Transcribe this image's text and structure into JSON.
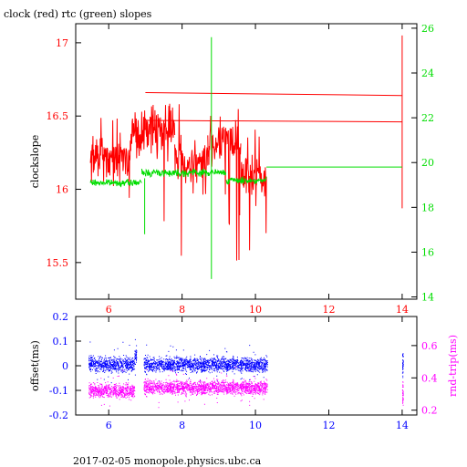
{
  "title": "clock (red) rtc (green) slopes",
  "footer": "2017-02-05  monopole.physics.ubc.ca",
  "colors": {
    "clock": "#ff0000",
    "rtc": "#00dd00",
    "offset": "#0000ff",
    "rndtrip": "#ff00ff",
    "frame": "#000000"
  },
  "chart_data": [
    {
      "type": "line",
      "title": "clock (red) rtc (green) slopes",
      "xlabel": "",
      "ylabel": "clockslope",
      "ylabel_right": "",
      "xlim": [
        5.1,
        14.4
      ],
      "ylim": [
        15.25,
        17.13
      ],
      "ylim_right": [
        13.9,
        26.2
      ],
      "xticks": [
        "6",
        "8",
        "10",
        "12",
        "14"
      ],
      "yticks": [
        "15.5",
        "16",
        "16.5",
        "17"
      ],
      "yticks_right": [
        "14",
        "16",
        "18",
        "20",
        "22",
        "24",
        "26"
      ],
      "clock_segments": [
        {
          "x0": 5.5,
          "x1": 6.6,
          "mean": 16.22,
          "spread": 0.12,
          "spike_lo": 15.55,
          "spike_hi": 16.6
        },
        {
          "x0": 6.6,
          "x1": 7.0,
          "mean": 16.38,
          "spread": 0.12,
          "spike_lo": 15.33,
          "spike_hi": 16.5
        },
        {
          "x0": 7.0,
          "x1": 7.8,
          "mean": 16.42,
          "spread": 0.14,
          "spike_lo": 15.7,
          "spike_hi": 16.73
        },
        {
          "x0": 7.8,
          "x1": 8.7,
          "mean": 16.18,
          "spread": 0.14,
          "spike_lo": 15.5,
          "spike_hi": 16.6
        },
        {
          "x0": 8.7,
          "x1": 9.6,
          "mean": 16.32,
          "spread": 0.15,
          "spike_lo": 15.4,
          "spike_hi": 16.65
        },
        {
          "x0": 9.6,
          "x1": 10.3,
          "mean": 16.08,
          "spread": 0.14,
          "spike_lo": 15.35,
          "spike_hi": 16.5
        }
      ],
      "clock_lines": [
        {
          "x": [
            7.0,
            14.0
          ],
          "y": [
            16.66,
            16.64
          ]
        },
        {
          "x": [
            7.0,
            14.0
          ],
          "y": [
            16.47,
            16.46
          ]
        },
        {
          "x": [
            14.0,
            14.0
          ],
          "y": [
            15.87,
            17.05
          ]
        }
      ],
      "rtc_segments": [
        {
          "x0": 5.5,
          "x1": 6.9,
          "mean": 19.1,
          "spread": 0.12
        },
        {
          "x0": 6.9,
          "x1": 9.2,
          "mean": 19.55,
          "spread": 0.15
        },
        {
          "x0": 9.2,
          "x1": 10.3,
          "mean": 19.2,
          "spread": 0.12
        }
      ],
      "rtc_lines": [
        {
          "x": [
            10.3,
            14.0
          ],
          "y": [
            19.8,
            19.8
          ]
        },
        {
          "x": [
            6.98,
            6.98
          ],
          "y": [
            16.8,
            19.3
          ]
        },
        {
          "x": [
            8.8,
            8.8
          ],
          "y": [
            14.8,
            25.6
          ]
        }
      ]
    },
    {
      "type": "scatter",
      "xlabel": "",
      "ylabel": "offset(ms)",
      "ylabel_right": "rnd-trip(ms)",
      "xlim": [
        5.1,
        14.4
      ],
      "ylim": [
        -0.2,
        0.2
      ],
      "ylim_right": [
        0.17,
        0.78
      ],
      "xticks": [
        "6",
        "8",
        "10",
        "12",
        "14"
      ],
      "yticks": [
        "-0.2",
        "-0.1",
        "0",
        "0.1",
        "0.2"
      ],
      "yticks_right": [
        "0.2",
        "0.4",
        "0.6"
      ],
      "offset_segments": [
        {
          "x0": 5.45,
          "x1": 6.7,
          "mean": 0.005,
          "spread": 0.025
        },
        {
          "x0": 6.7,
          "x1": 6.75,
          "mean": 0.04,
          "spread": 0.03
        },
        {
          "x0": 6.95,
          "x1": 10.32,
          "mean": 0.005,
          "spread": 0.025
        },
        {
          "x0": 14.0,
          "x1": 14.02,
          "mean": 0.005,
          "spread": 0.04
        }
      ],
      "rndtrip_segments": [
        {
          "x0": 5.45,
          "x1": 6.7,
          "mean": 0.32,
          "spread": 0.035
        },
        {
          "x0": 6.95,
          "x1": 10.32,
          "mean": 0.34,
          "spread": 0.035
        },
        {
          "x0": 14.0,
          "x1": 14.02,
          "mean": 0.3,
          "spread": 0.06
        }
      ]
    }
  ]
}
